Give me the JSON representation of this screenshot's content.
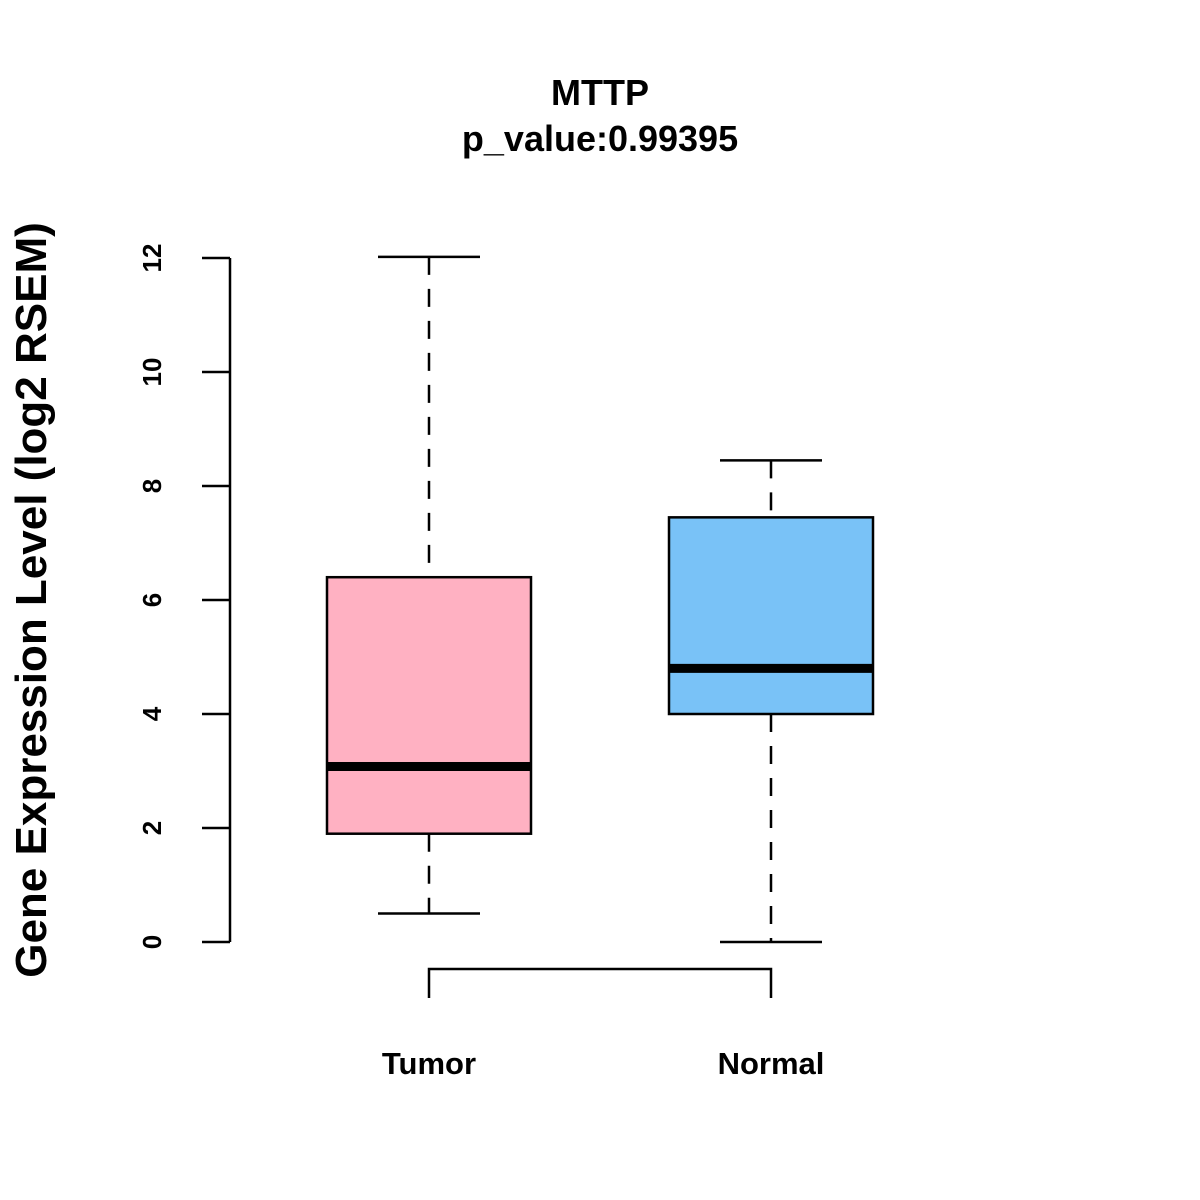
{
  "chart_data": {
    "type": "boxplot",
    "title": "MTTP",
    "subtitle": "p_value:0.99395",
    "xlabel": "",
    "ylabel": "Gene Expression Level (log2 RSEM)",
    "ylim": [
      0,
      12
    ],
    "yticks": [
      "0",
      "2",
      "4",
      "6",
      "8",
      "10",
      "12"
    ],
    "yticks_values": [
      0,
      2,
      4,
      6,
      8,
      10,
      12
    ],
    "categories": [
      "Tumor",
      "Normal"
    ],
    "boxes": [
      {
        "name": "Tumor",
        "whisker_low": 0.5,
        "q1": 1.9,
        "median": 3.08,
        "q3": 6.4,
        "whisker_high": 12.02,
        "color": "#FFB1C2"
      },
      {
        "name": "Normal",
        "whisker_low": 0.0,
        "q1": 4.0,
        "median": 4.8,
        "q3": 7.45,
        "whisker_high": 8.45,
        "color": "#79C2F7"
      }
    ],
    "comparison_bracket": [
      "Tumor",
      "Normal"
    ],
    "grid": false,
    "legend": "none"
  }
}
